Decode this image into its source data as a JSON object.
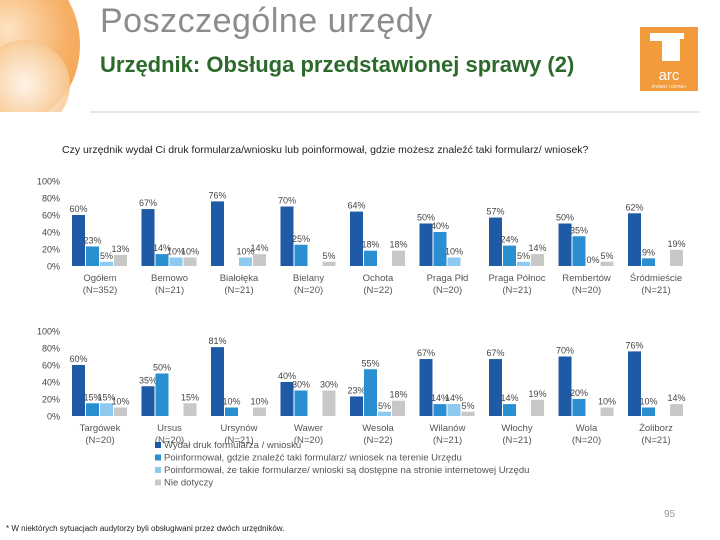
{
  "header": {
    "title": "Poszczególne urzędy",
    "subtitle": "Urzędnik: Obsługa przedstawionej sprawy (2)"
  },
  "logo": {
    "text": "arc",
    "subtext": "RYNEK I OPINIA"
  },
  "question": "Czy urzędnik wydał Ci druk formularza/wniosku lub poinformował, gdzie możesz znaleźć taki formularz/ wniosek?",
  "footnote": "* W niektórych sytuacjach audytorzy byli obsługiwani przez dwóch urzędników.",
  "page_number": "95",
  "colors": {
    "dark_blue": "#1f5aa6",
    "medium_blue": "#2a8fd1",
    "light_blue": "#8ec9ef",
    "gray": "#c8c8c8",
    "title_gray": "#8c8c8c",
    "subtitle_green": "#2c6a2c",
    "accent_orange": "#f29a3c"
  },
  "chart_data": [
    {
      "type": "bar",
      "y_ticks": [
        "100%",
        "80%",
        "60%",
        "40%",
        "20%",
        "0%"
      ],
      "ylim": [
        0,
        100
      ],
      "categories": [
        "Ogółem",
        "Bemowo",
        "Białołęka",
        "Bielany",
        "Ochota",
        "Praga Płd",
        "Praga Północ",
        "Rembertów",
        "Śródmieście"
      ],
      "category_n": [
        "(N=352)",
        "(N=21)",
        "(N=21)",
        "(N=20)",
        "(N=22)",
        "(N=20)",
        "(N=21)",
        "(N=20)",
        "(N=21)"
      ],
      "series": [
        {
          "name": "Wydał druk formularza / wniosku",
          "values": [
            60,
            67,
            76,
            70,
            64,
            50,
            57,
            50,
            62
          ]
        },
        {
          "name": "Poinformował, gdzie znaleźć taki formularz/ wniosek na terenie Urzędu",
          "values": [
            23,
            14,
            0,
            25,
            18,
            40,
            24,
            35,
            9
          ]
        },
        {
          "name": "Poinformował, że takie formularze/ wnioski są dostępne na stronie internetowej Urzędu",
          "values": [
            5,
            10,
            10,
            0,
            0,
            10,
            5,
            0,
            0
          ]
        },
        {
          "name": "Nie dotyczy",
          "values": [
            13,
            10,
            14,
            5,
            18,
            0,
            14,
            5,
            19
          ]
        }
      ],
      "labels": [
        [
          "60%",
          "23%",
          "5%",
          "13%"
        ],
        [
          "67%",
          "14%",
          "10%",
          "10%"
        ],
        [
          "76%",
          "",
          "10%",
          "14%"
        ],
        [
          "70%",
          "25%",
          "",
          "5%"
        ],
        [
          "64%",
          "18%",
          "",
          "18%"
        ],
        [
          "50%",
          "40%",
          "10%",
          ""
        ],
        [
          "57%",
          "24%",
          "5%",
          "14%"
        ],
        [
          "50%",
          "35%",
          "0%",
          "5%"
        ],
        [
          "62%",
          "9%",
          "",
          "19%"
        ]
      ]
    },
    {
      "type": "bar",
      "y_ticks": [
        "100%",
        "80%",
        "60%",
        "40%",
        "20%",
        "0%"
      ],
      "ylim": [
        0,
        100
      ],
      "categories": [
        "Targówek",
        "Ursus",
        "Ursynów",
        "Wawer",
        "Wesoła",
        "Wilanów",
        "Włochy",
        "Wola",
        "Żoliborz"
      ],
      "category_n": [
        "(N=20)",
        "(N=20)",
        "(N=21)",
        "(N=20)",
        "(N=22)",
        "(N=21)",
        "(N=21)",
        "(N=20)",
        "(N=21)"
      ],
      "series": [
        {
          "name": "Wydał druk formularza / wniosku",
          "values": [
            60,
            35,
            81,
            40,
            23,
            67,
            67,
            70,
            76
          ]
        },
        {
          "name": "Poinformował, gdzie znaleźć taki formularz/ wniosek na terenie Urzędu",
          "values": [
            15,
            50,
            10,
            30,
            55,
            14,
            14,
            20,
            10
          ]
        },
        {
          "name": "Poinformował, że takie formularze/ wnioski są dostępne na stronie internetowej Urzędu",
          "values": [
            15,
            0,
            0,
            0,
            5,
            14,
            0,
            0,
            0
          ]
        },
        {
          "name": "Nie dotyczy",
          "values": [
            10,
            15,
            10,
            30,
            18,
            5,
            19,
            10,
            14
          ]
        }
      ],
      "labels": [
        [
          "60%",
          "15%",
          "15%",
          "10%"
        ],
        [
          "35%",
          "50%",
          "",
          "15%"
        ],
        [
          "81%",
          "10%",
          "",
          "10%"
        ],
        [
          "40%",
          "30%",
          "",
          "30%"
        ],
        [
          "23%",
          "55%",
          "5%",
          "18%"
        ],
        [
          "67%",
          "14%",
          "14%",
          "5%"
        ],
        [
          "67%",
          "14%",
          "",
          "19%"
        ],
        [
          "70%",
          "20%",
          "",
          "10%"
        ],
        [
          "76%",
          "10%",
          "",
          "14%"
        ]
      ]
    }
  ]
}
